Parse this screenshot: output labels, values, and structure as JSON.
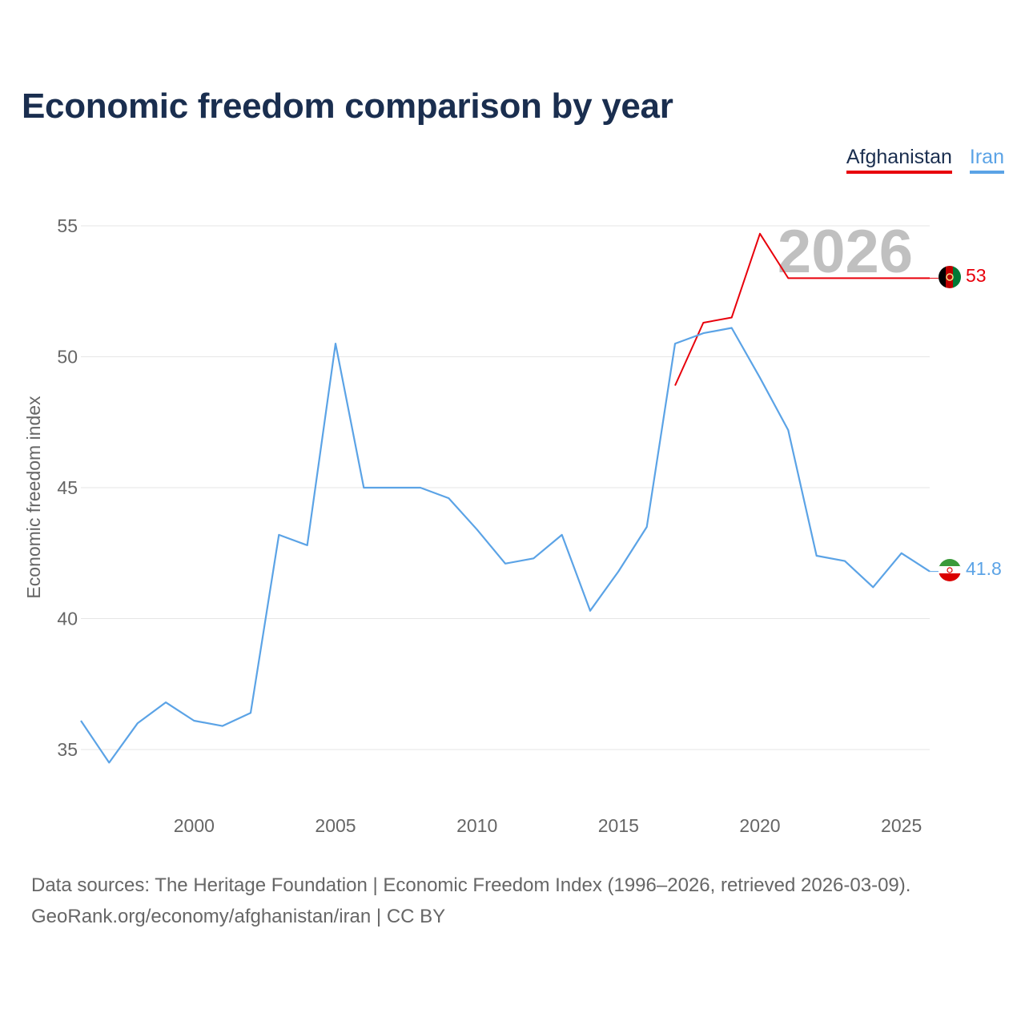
{
  "title": "Economic freedom comparison by year",
  "legend": [
    {
      "label": "Afghanistan",
      "color": "#e8000b"
    },
    {
      "label": "Iran",
      "color": "#5ba3e6"
    }
  ],
  "source_line1": "Data sources: The Heritage Foundation | Economic Freedom Index (1996–2026, retrieved 2026-03-09).",
  "source_line2": "GeoRank.org/economy/afghanistan/iran | CC BY",
  "chart_data": {
    "type": "line",
    "title": "Economic freedom comparison by year",
    "xlabel": "",
    "ylabel": "Economic freedom index",
    "year_watermark": "2026",
    "xlim": [
      1996,
      2026
    ],
    "ylim": [
      33,
      56
    ],
    "grid": true,
    "x_ticks": [
      2000,
      2005,
      2010,
      2015,
      2020,
      2025
    ],
    "y_ticks": [
      35,
      40,
      45,
      50,
      55
    ],
    "series": [
      {
        "name": "Afghanistan",
        "color": "#e8000b",
        "end_label": "53",
        "flag_icon": "afghanistan-flag-icon",
        "x": [
          2017,
          2018,
          2019,
          2020,
          2021,
          2026
        ],
        "values": [
          48.9,
          51.3,
          51.5,
          54.7,
          53.0,
          53.0
        ]
      },
      {
        "name": "Iran",
        "color": "#5ba3e6",
        "end_label": "41.8",
        "flag_icon": "iran-flag-icon",
        "x": [
          1996,
          1997,
          1998,
          1999,
          2000,
          2001,
          2002,
          2003,
          2004,
          2005,
          2006,
          2007,
          2008,
          2009,
          2010,
          2011,
          2012,
          2013,
          2014,
          2015,
          2016,
          2017,
          2018,
          2019,
          2020,
          2021,
          2022,
          2023,
          2024,
          2025,
          2026
        ],
        "values": [
          36.1,
          34.5,
          36.0,
          36.8,
          36.1,
          35.9,
          36.4,
          43.2,
          42.8,
          50.5,
          45.0,
          45.0,
          45.0,
          44.6,
          43.4,
          42.1,
          42.3,
          43.2,
          40.3,
          41.8,
          43.5,
          50.5,
          50.9,
          51.1,
          49.2,
          47.2,
          42.4,
          42.2,
          41.2,
          42.5,
          41.8
        ]
      }
    ]
  }
}
